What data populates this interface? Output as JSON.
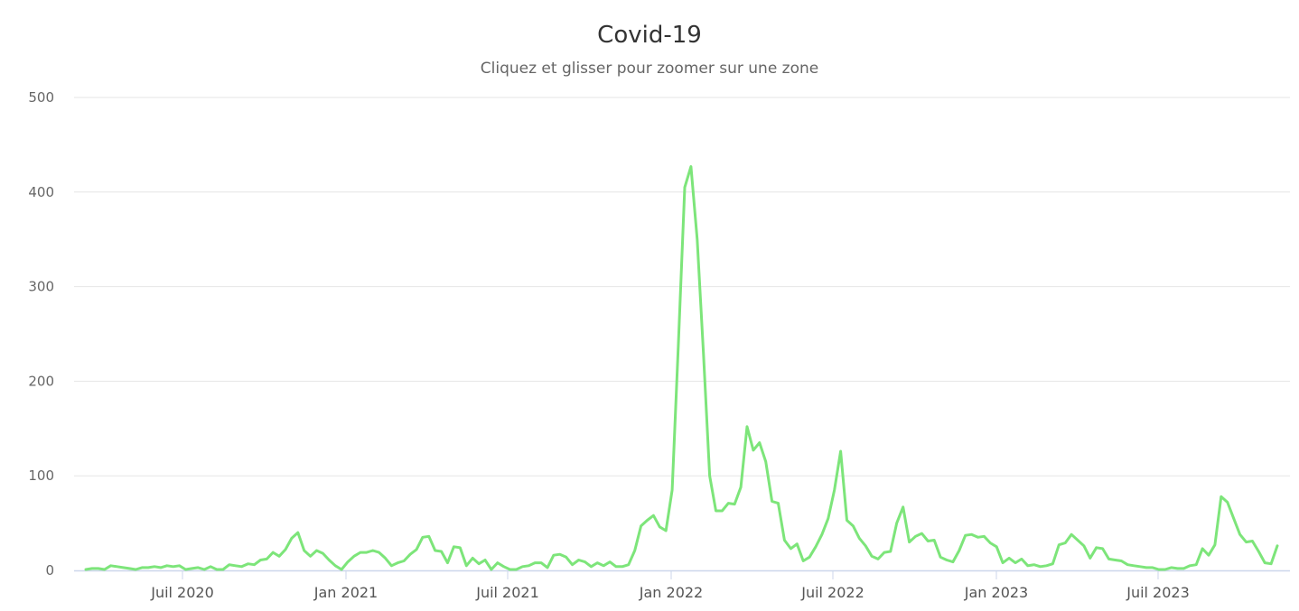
{
  "title": "Covid-19",
  "subtitle": "Cliquez et glisser pour zoomer sur une zone",
  "colors": {
    "series": "#7de57a",
    "grid": "#e6e6e6",
    "axis": "#ccd6eb",
    "text": "#666666"
  },
  "chart_data": {
    "type": "line",
    "title": "Covid-19",
    "subtitle": "Cliquez et glisser pour zoomer sur une zone",
    "xlabel": "",
    "ylabel": "",
    "ylim": [
      0,
      500
    ],
    "yticks": [
      0,
      100,
      200,
      300,
      400,
      500
    ],
    "xticks": [
      "Juil 2020",
      "Jan 2021",
      "Juil 2021",
      "Jan 2022",
      "Juil 2022",
      "Jan 2023",
      "Juil 2023"
    ],
    "grid": true,
    "legend": "none",
    "x_interval": "weekly",
    "x_start": "Mar 2020",
    "series": [
      {
        "name": "Covid-19",
        "values": [
          1,
          2,
          2,
          1,
          5,
          4,
          3,
          2,
          1,
          3,
          3,
          4,
          3,
          5,
          4,
          5,
          1,
          2,
          3,
          1,
          4,
          1,
          1,
          6,
          5,
          4,
          7,
          6,
          11,
          12,
          19,
          15,
          22,
          34,
          40,
          21,
          15,
          21,
          18,
          11,
          5,
          1,
          9,
          15,
          19,
          19,
          21,
          19,
          13,
          5,
          8,
          10,
          17,
          22,
          35,
          36,
          21,
          20,
          8,
          25,
          24,
          5,
          13,
          7,
          11,
          1,
          8,
          4,
          1,
          1,
          4,
          5,
          8,
          8,
          3,
          16,
          17,
          14,
          6,
          11,
          9,
          4,
          8,
          5,
          9,
          4,
          4,
          6,
          21,
          47,
          53,
          58,
          46,
          42,
          85,
          240,
          405,
          427,
          350,
          230,
          100,
          63,
          63,
          71,
          70,
          88,
          152,
          127,
          135,
          115,
          73,
          71,
          32,
          23,
          28,
          10,
          14,
          25,
          38,
          55,
          85,
          126,
          53,
          47,
          34,
          26,
          15,
          12,
          19,
          20,
          50,
          67,
          30,
          36,
          39,
          31,
          32,
          14,
          11,
          9,
          21,
          37,
          38,
          35,
          36,
          29,
          25,
          8,
          13,
          8,
          12,
          5,
          6,
          4,
          5,
          7,
          27,
          29,
          38,
          32,
          26,
          13,
          24,
          23,
          12,
          11,
          10,
          6,
          5,
          4,
          3,
          3,
          1,
          1,
          3,
          2,
          2,
          5,
          6,
          23,
          16,
          27,
          78,
          72,
          55,
          38,
          30,
          31,
          20,
          8,
          7,
          26
        ]
      }
    ]
  }
}
